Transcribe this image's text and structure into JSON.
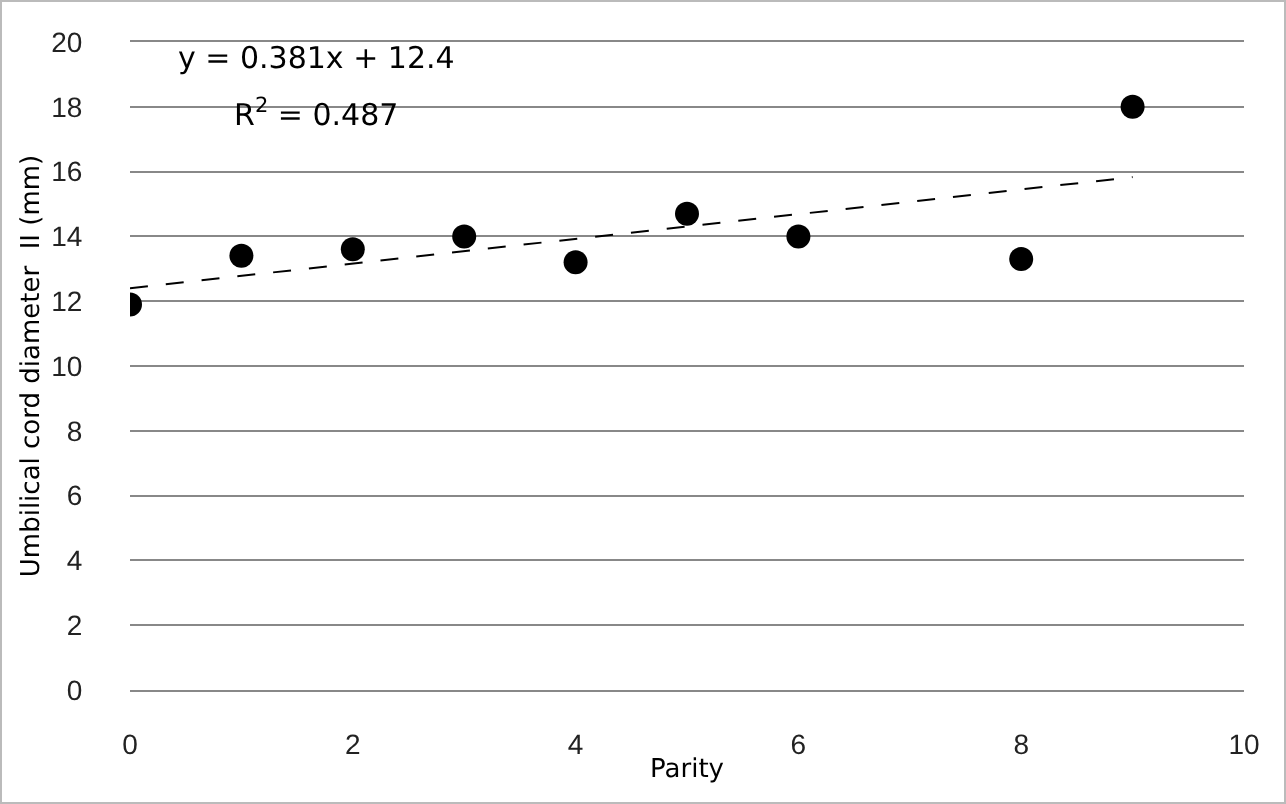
{
  "chart_data": {
    "type": "scatter",
    "xlabel": "Parity",
    "ylabel": "Umbilical cord diameter  II (mm)",
    "x": [
      0,
      1,
      2,
      3,
      4,
      5,
      6,
      8,
      9
    ],
    "series": [
      {
        "color": "#000000",
        "marker": "circle",
        "values": [
          11.9,
          13.4,
          13.6,
          14.0,
          13.2,
          14.7,
          14.0,
          13.3,
          18.0
        ]
      },
      {
        "type": "line",
        "color": "#000000",
        "line_style": "dashed",
        "marker": "none",
        "x": [
          0,
          9
        ],
        "values": [
          12.4,
          15.83
        ]
      }
    ],
    "xlim": [
      0,
      10
    ],
    "xticks": [
      0,
      2,
      4,
      6,
      8,
      10
    ],
    "ylim": [
      0,
      20
    ],
    "yticks": [
      0,
      2,
      4,
      6,
      8,
      10,
      12,
      14,
      16,
      18,
      20
    ],
    "grid": "y",
    "annotations": [
      "y = 0.381x + 12.4",
      "R$^{2}$ = 0.487"
    ]
  }
}
